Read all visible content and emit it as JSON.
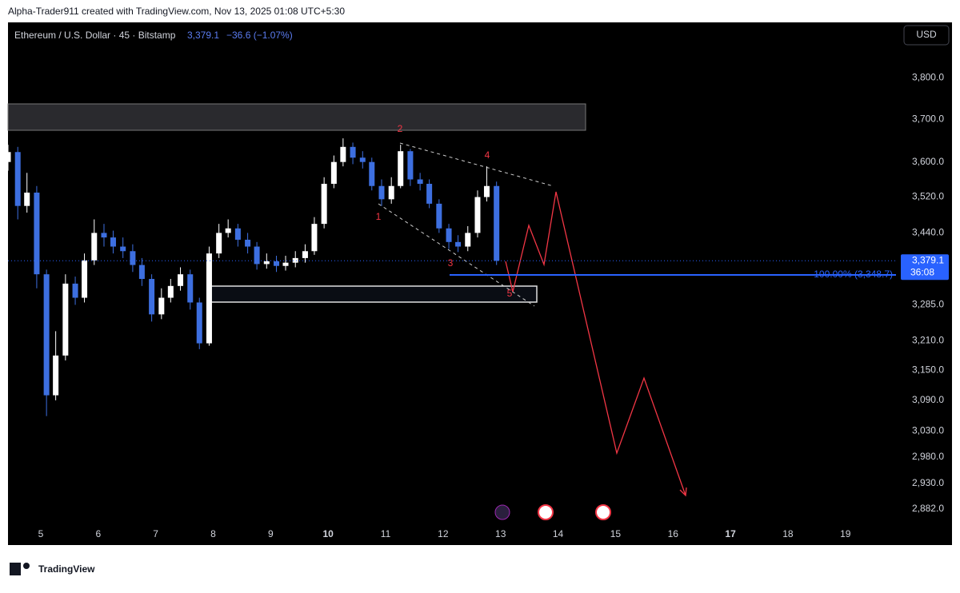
{
  "header": {
    "attribution": "Alpha-Trader911 created with TradingView.com, Nov 13, 2025 01:08 UTC+5:30"
  },
  "chart_data": {
    "type": "candlestick",
    "symbol": "Ethereum / U.S. Dollar · 45 · Bitstamp",
    "last_price": "3,379.1",
    "change": "−36.6 (−1.07%)",
    "currency": "USD",
    "log_scale": true,
    "grid": false,
    "up_color": "#ffffff",
    "down_color": "#3d6fe0",
    "x": [
      4.43,
      4.6,
      4.76,
      4.93,
      5.1,
      5.26,
      5.43,
      5.6,
      5.76,
      5.93,
      6.1,
      6.26,
      6.43,
      6.6,
      6.76,
      6.93,
      7.1,
      7.26,
      7.43,
      7.6,
      7.76,
      7.93,
      8.1,
      8.26,
      8.43,
      8.6,
      8.76,
      8.93,
      9.1,
      9.26,
      9.43,
      9.6,
      9.76,
      9.93,
      10.1,
      10.26,
      10.43,
      10.6,
      10.76,
      10.93,
      11.1,
      11.26,
      11.43,
      11.6,
      11.76,
      11.93,
      12.1,
      12.26,
      12.43,
      12.6,
      12.76,
      12.93
    ],
    "open": [
      3600,
      3623,
      3500,
      3530,
      3350,
      3100,
      3180,
      3330,
      3300,
      3380,
      3440,
      3430,
      3410,
      3400,
      3370,
      3340,
      3265,
      3300,
      3325,
      3350,
      3290,
      3205,
      3395,
      3440,
      3450,
      3425,
      3410,
      3372,
      3378,
      3368,
      3375,
      3385,
      3400,
      3460,
      3550,
      3600,
      3635,
      3610,
      3600,
      3545,
      3515,
      3545,
      3625,
      3560,
      3550,
      3505,
      3450,
      3420,
      3410,
      3440,
      3520,
      3545
    ],
    "high": [
      3640,
      3635,
      3575,
      3545,
      3360,
      3230,
      3350,
      3345,
      3395,
      3470,
      3460,
      3445,
      3430,
      3415,
      3385,
      3350,
      3320,
      3340,
      3365,
      3360,
      3300,
      3410,
      3460,
      3470,
      3460,
      3440,
      3420,
      3395,
      3390,
      3390,
      3400,
      3415,
      3475,
      3565,
      3615,
      3655,
      3645,
      3625,
      3610,
      3560,
      3565,
      3640,
      3630,
      3575,
      3560,
      3515,
      3460,
      3435,
      3455,
      3535,
      3590,
      3555
    ],
    "low": [
      3580,
      3470,
      3485,
      3320,
      3059,
      3090,
      3170,
      3285,
      3290,
      3370,
      3410,
      3395,
      3385,
      3355,
      3325,
      3250,
      3255,
      3290,
      3315,
      3275,
      3193,
      3200,
      3385,
      3430,
      3410,
      3395,
      3360,
      3362,
      3355,
      3358,
      3365,
      3375,
      3392,
      3450,
      3540,
      3590,
      3595,
      3585,
      3535,
      3500,
      3505,
      3540,
      3545,
      3535,
      3495,
      3440,
      3405,
      3398,
      3400,
      3430,
      3510,
      3370
    ],
    "close": [
      3623,
      3500,
      3530,
      3350,
      3100,
      3180,
      3330,
      3300,
      3380,
      3440,
      3430,
      3410,
      3400,
      3370,
      3340,
      3265,
      3300,
      3325,
      3350,
      3290,
      3205,
      3395,
      3440,
      3450,
      3425,
      3410,
      3372,
      3378,
      3368,
      3375,
      3385,
      3400,
      3460,
      3550,
      3600,
      3635,
      3610,
      3600,
      3545,
      3515,
      3545,
      3625,
      3560,
      3550,
      3505,
      3450,
      3420,
      3410,
      3440,
      3520,
      3545,
      3379.1
    ],
    "xlim": [
      4.43,
      19.88
    ],
    "ylim": [
      2854,
      3937
    ],
    "xticks": [
      5,
      6,
      7,
      8,
      9,
      10,
      11,
      12,
      13,
      14,
      15,
      16,
      17,
      18,
      19
    ],
    "bold_xticks": [
      10,
      17
    ],
    "yticks": [
      {
        "value": 3800,
        "label": "3,800.0"
      },
      {
        "value": 3700,
        "label": "3,700.0"
      },
      {
        "value": 3600,
        "label": "3,600.0"
      },
      {
        "value": 3520,
        "label": "3,520.0"
      },
      {
        "value": 3440,
        "label": "3,440.0"
      },
      {
        "value": 3285,
        "label": "3,285.0"
      },
      {
        "value": 3210,
        "label": "3,210.0"
      },
      {
        "value": 3150,
        "label": "3,150.0"
      },
      {
        "value": 3090,
        "label": "3,090.0"
      },
      {
        "value": 3030,
        "label": "3,030.0"
      },
      {
        "value": 2980,
        "label": "2,980.0"
      },
      {
        "value": 2930,
        "label": "2,930.0"
      },
      {
        "value": 2882,
        "label": "2,882.0"
      }
    ],
    "current_price": {
      "value": 3379.1,
      "label": "3,379.1",
      "countdown": "36:08",
      "color": "#2962ff"
    },
    "fib_level": {
      "value": 3348.7,
      "label": "100.00% (3,348.7)",
      "color": "#2962ff"
    },
    "wave_labels": [
      "1",
      "2",
      "3",
      "4",
      "5"
    ]
  },
  "footer": {
    "brand": "TradingView"
  }
}
